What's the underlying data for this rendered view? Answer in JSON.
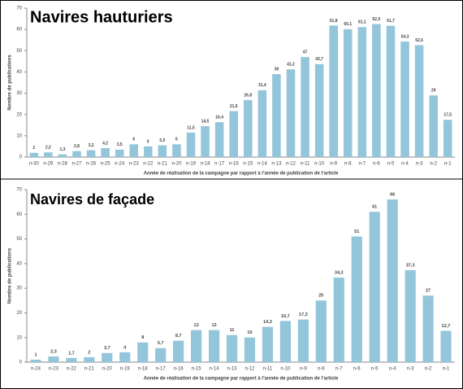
{
  "chart_data": [
    {
      "type": "bar",
      "title": "Navires hauturiers",
      "ylabel": "Nombre de publications",
      "xlabel": "Année de réalisation de la campagne par rapport à l'année de publication de l'article",
      "categories": [
        "n-30",
        "n-29",
        "n-28",
        "n-27",
        "n-26",
        "n-25",
        "n-24",
        "n-23",
        "n-22",
        "n-21",
        "n-20",
        "n-19",
        "n-18",
        "n-17",
        "n-16",
        "n-15",
        "n-14",
        "n-13",
        "n-12",
        "n-11",
        "n-10",
        "n-9",
        "n-8",
        "n-7",
        "n-6",
        "n-5",
        "n-4",
        "n-3",
        "n-2",
        "n-1"
      ],
      "values": [
        2,
        2.2,
        1.3,
        2.8,
        3.2,
        4.2,
        3.5,
        6,
        5,
        5.5,
        6,
        11.5,
        14.5,
        16.4,
        21.6,
        26.8,
        31.4,
        39,
        41.2,
        47,
        43.7,
        61.8,
        60.1,
        61.1,
        62.5,
        61.7,
        54.3,
        52.6,
        29,
        17.5
      ],
      "value_labels": [
        "2",
        "2,2",
        "1,3",
        "2,8",
        "3,2",
        "4,2",
        "3,5",
        "6",
        "5",
        "5,5",
        "6",
        "11,5",
        "14,5",
        "16,4",
        "21,6",
        "26,8",
        "31,4",
        "39",
        "41,2",
        "47",
        "43,7",
        "61,8",
        "60,1",
        "61,1",
        "62,5",
        "61,7",
        "54,3",
        "52,6",
        "29",
        "17,5"
      ],
      "color": "#93c6da",
      "ylim": [
        0,
        70
      ],
      "yticks": [
        0,
        10,
        20,
        30,
        40,
        50,
        60,
        70
      ]
    },
    {
      "type": "bar",
      "title": "Navires de façade",
      "ylabel": "Nombre de publications",
      "xlabel": "Année de réalisation de la campagne par rapport à l'année de publication de l'article",
      "categories": [
        "n-24",
        "n-23",
        "n-22",
        "n-21",
        "n-20",
        "n-19",
        "n-18",
        "n-17",
        "n-16",
        "n-15",
        "n-14",
        "n-13",
        "n-12",
        "n-11",
        "n-10",
        "n-9",
        "n-8",
        "n-7",
        "n-6",
        "n-5",
        "n-4",
        "n-3",
        "n-2",
        "n-1"
      ],
      "values": [
        1,
        2.3,
        1.7,
        2,
        3.7,
        4,
        8,
        5.7,
        8.7,
        13,
        13,
        11,
        10,
        14.3,
        16.7,
        17.3,
        25,
        34.3,
        51,
        61,
        66,
        37.3,
        27,
        12.7
      ],
      "value_labels": [
        "1",
        "2,3",
        "1,7",
        "2",
        "3,7",
        "4",
        "8",
        "5,7",
        "8,7",
        "13",
        "13",
        "11",
        "10",
        "14,3",
        "16,7",
        "17,3",
        "25",
        "34,3",
        "51",
        "61",
        "66",
        "37,3",
        "27",
        "12,7"
      ],
      "color": "#93c6da",
      "ylim": [
        0,
        70
      ],
      "yticks": [
        0,
        10,
        20,
        30,
        40,
        50,
        60,
        70
      ]
    }
  ]
}
